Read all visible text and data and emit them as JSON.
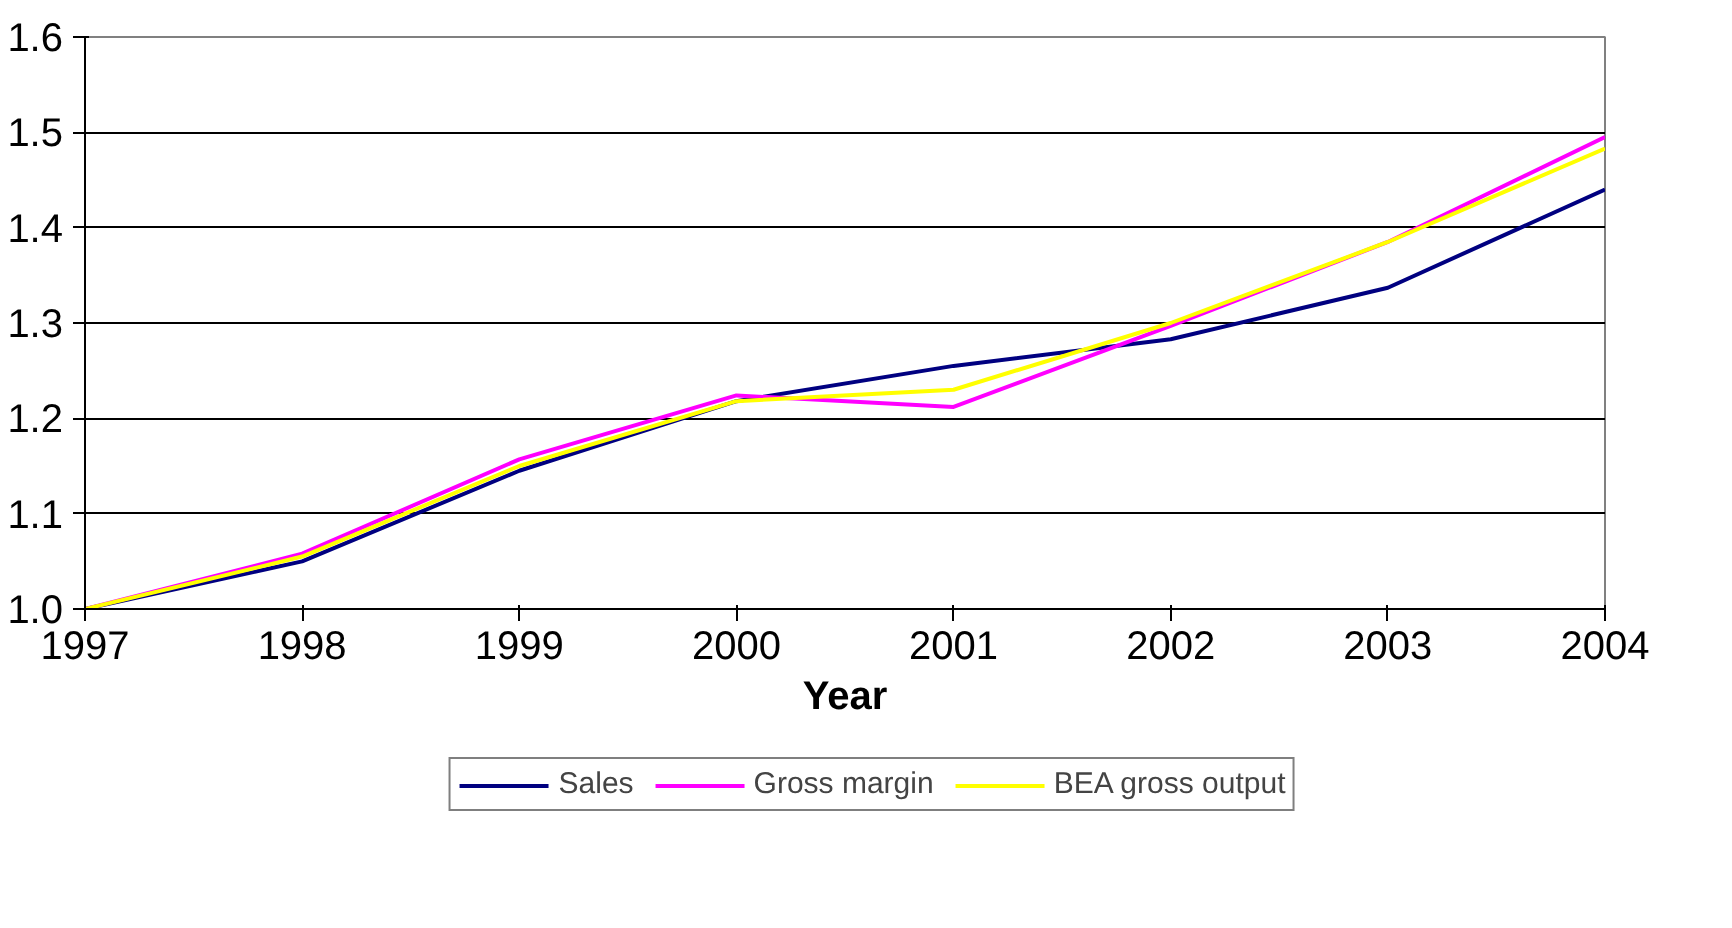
{
  "chart_data": {
    "type": "line",
    "xlabel": "Year",
    "x": [
      1997,
      1998,
      1999,
      2000,
      2001,
      2002,
      2003,
      2004
    ],
    "xlim": [
      1997,
      2004
    ],
    "xticks": [
      1997,
      1998,
      1999,
      2000,
      2001,
      2002,
      2003,
      2004
    ],
    "ylim": [
      1.0,
      1.6
    ],
    "yticks": [
      {
        "value": 1.0,
        "label": "1.0"
      },
      1.1,
      1.2,
      1.3,
      1.4,
      1.5,
      1.6
    ],
    "grid": "y",
    "legend": "bottom",
    "marker": "none",
    "line_style": "solid",
    "series": [
      {
        "name": "Sales",
        "color": "#000080",
        "values": [
          1.0,
          1.05,
          1.145,
          1.218,
          1.255,
          1.283,
          1.337,
          1.44
        ]
      },
      {
        "name": "Gross margin",
        "color": "#ff00ff",
        "values": [
          1.0,
          1.058,
          1.157,
          1.224,
          1.212,
          1.297,
          1.385,
          1.495
        ]
      },
      {
        "name": "BEA gross output",
        "color": "#ffff00",
        "values": [
          1.0,
          1.055,
          1.15,
          1.218,
          1.23,
          1.3,
          1.385,
          1.483
        ]
      }
    ]
  }
}
